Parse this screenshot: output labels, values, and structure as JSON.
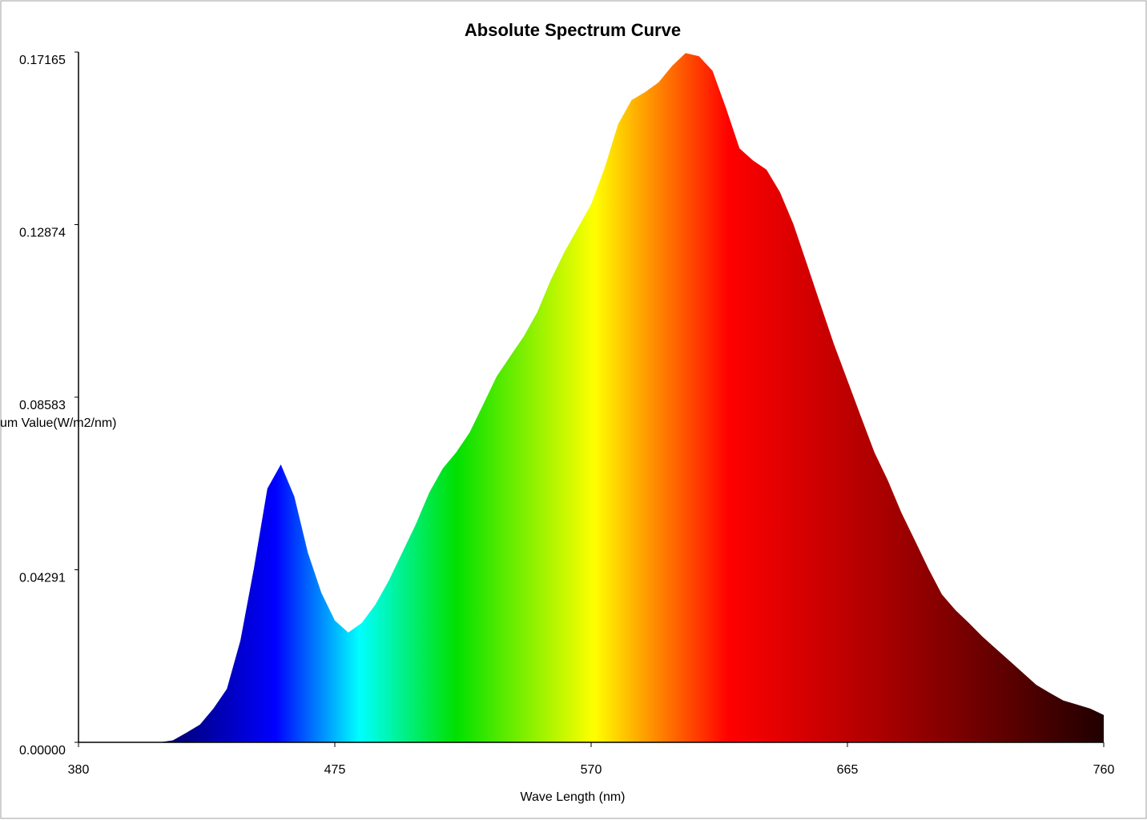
{
  "chart_data": {
    "type": "area",
    "title": "Absolute Spectrum Curve",
    "x_label": "Wave Length (nm)",
    "y_label": "um Value(W/m2/nm)",
    "xlim": [
      380,
      760
    ],
    "xticks": [
      380,
      475,
      570,
      665,
      760
    ],
    "ylim": [
      0,
      0.17165
    ],
    "yticks": [
      {
        "value": 0,
        "label": "0.00000"
      },
      0.04291,
      0.08583,
      0.12874,
      0.17165
    ],
    "x": [
      380,
      385,
      390,
      395,
      400,
      405,
      410,
      415,
      420,
      425,
      430,
      435,
      440,
      445,
      450,
      455,
      460,
      465,
      470,
      475,
      480,
      485,
      490,
      495,
      500,
      505,
      510,
      515,
      520,
      525,
      530,
      535,
      540,
      545,
      550,
      555,
      560,
      565,
      570,
      575,
      580,
      585,
      590,
      595,
      600,
      605,
      610,
      615,
      620,
      625,
      630,
      635,
      640,
      645,
      650,
      655,
      660,
      665,
      670,
      675,
      680,
      685,
      690,
      695,
      700,
      705,
      710,
      715,
      720,
      725,
      730,
      735,
      740,
      745,
      750,
      755,
      760
    ],
    "series": [
      {
        "name": "Absolute Spectrum",
        "values": [
          0,
          0,
          0,
          0,
          0,
          0,
          0,
          0.0005,
          0.0024,
          0.0044,
          0.0084,
          0.0133,
          0.0253,
          0.0432,
          0.0631,
          0.0691,
          0.0611,
          0.0472,
          0.0372,
          0.0303,
          0.0273,
          0.0297,
          0.0342,
          0.0402,
          0.0472,
          0.0542,
          0.0621,
          0.0681,
          0.0721,
          0.0771,
          0.084,
          0.091,
          0.096,
          0.1009,
          0.1069,
          0.1149,
          0.1218,
          0.1278,
          0.1338,
          0.1428,
          0.1537,
          0.1597,
          0.1617,
          0.1641,
          0.1682,
          0.1714,
          0.1706,
          0.167,
          0.1577,
          0.1477,
          0.1447,
          0.1424,
          0.1368,
          0.1288,
          0.1189,
          0.1089,
          0.099,
          0.09,
          0.081,
          0.0721,
          0.0651,
          0.0571,
          0.0502,
          0.0432,
          0.0368,
          0.0329,
          0.0297,
          0.0263,
          0.0233,
          0.0203,
          0.0173,
          0.0143,
          0.0123,
          0.0104,
          0.0094,
          0.0084,
          0.0068
        ]
      }
    ]
  }
}
